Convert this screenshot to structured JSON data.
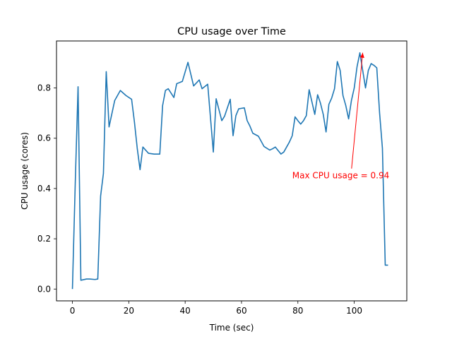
{
  "chart_data": {
    "type": "line",
    "title": "CPU usage over Time",
    "xlabel": "Time (sec)",
    "ylabel": "CPU usage (cores)",
    "xlim": [
      -5.65,
      118.65
    ],
    "ylim": [
      -0.047,
      0.987
    ],
    "xticks": [
      0,
      20,
      40,
      60,
      80,
      100
    ],
    "xtick_labels": [
      "0",
      "20",
      "40",
      "60",
      "80",
      "100"
    ],
    "yticks": [
      0.0,
      0.2,
      0.4,
      0.6,
      0.8
    ],
    "ytick_labels": [
      "0.0",
      "0.2",
      "0.4",
      "0.6",
      "0.8"
    ],
    "grid": false,
    "line_color": "#1f77b4",
    "series": [
      {
        "x": [
          0,
          1,
          2,
          3,
          5,
          6,
          8,
          9,
          10,
          11,
          12,
          13,
          15,
          17,
          19,
          21,
          22,
          23,
          24,
          25,
          27,
          29,
          31,
          32,
          33,
          34,
          36,
          37,
          39,
          41,
          42,
          43,
          45,
          46,
          48,
          50,
          51,
          53,
          54,
          56,
          57,
          58,
          59,
          60,
          61,
          62,
          63,
          64,
          66,
          68,
          70,
          71,
          72,
          74,
          75,
          77,
          78,
          79,
          80,
          81,
          82,
          83,
          84,
          86,
          87,
          88,
          89,
          90,
          91,
          92,
          93,
          94,
          95,
          96,
          97,
          98,
          99,
          100,
          101,
          102,
          103,
          104,
          105,
          106,
          107,
          108,
          109,
          110,
          111,
          112
        ],
        "y": [
          0.0,
          0.42,
          0.805,
          0.035,
          0.04,
          0.04,
          0.038,
          0.04,
          0.37,
          0.46,
          0.865,
          0.645,
          0.75,
          0.79,
          0.77,
          0.755,
          0.665,
          0.56,
          0.475,
          0.565,
          0.54,
          0.537,
          0.537,
          0.73,
          0.79,
          0.797,
          0.762,
          0.817,
          0.826,
          0.902,
          0.855,
          0.808,
          0.832,
          0.797,
          0.815,
          0.545,
          0.757,
          0.67,
          0.688,
          0.755,
          0.61,
          0.69,
          0.717,
          0.719,
          0.721,
          0.67,
          0.648,
          0.62,
          0.608,
          0.567,
          0.553,
          0.558,
          0.565,
          0.537,
          0.545,
          0.585,
          0.61,
          0.685,
          0.67,
          0.656,
          0.67,
          0.69,
          0.793,
          0.695,
          0.773,
          0.74,
          0.695,
          0.625,
          0.735,
          0.76,
          0.797,
          0.905,
          0.87,
          0.77,
          0.73,
          0.677,
          0.75,
          0.8,
          0.885,
          0.94,
          0.87,
          0.8,
          0.87,
          0.897,
          0.89,
          0.88,
          0.7,
          0.56,
          0.095,
          0.095
        ]
      }
    ],
    "annotations": [
      {
        "text": "Max CPU usage = 0.94",
        "color": "#ff0000",
        "point": [
          103,
          0.94
        ],
        "text_anchor": [
          78,
          0.44
        ]
      }
    ]
  }
}
